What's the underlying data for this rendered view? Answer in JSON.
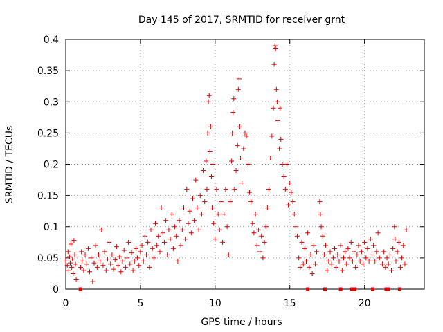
{
  "chart_data": {
    "type": "scatter",
    "title": "Day 145 of 2017, SRMTID for receiver grnt",
    "xlabel": "GPS time / hours",
    "ylabel": "SRMTID / TECUs",
    "xlim": [
      0,
      24
    ],
    "ylim": [
      0,
      0.4
    ],
    "xticks": [
      "0",
      "5",
      "10",
      "15",
      "20"
    ],
    "yticks": [
      "0",
      "0.05",
      "0.1",
      "0.15",
      "0.2",
      "0.25",
      "0.3",
      "0.35",
      "0.4"
    ],
    "grid": true,
    "marker": "+",
    "color": "#e00000",
    "series": [
      {
        "name": "SRMTID",
        "points": [
          [
            0.0,
            0.045
          ],
          [
            0.1,
            0.038
          ],
          [
            0.15,
            0.06
          ],
          [
            0.2,
            0.03
          ],
          [
            0.25,
            0.052
          ],
          [
            0.3,
            0.042
          ],
          [
            0.35,
            0.072
          ],
          [
            0.4,
            0.035
          ],
          [
            0.45,
            0.048
          ],
          [
            0.5,
            0.025
          ],
          [
            0.55,
            0.078
          ],
          [
            0.6,
            0.055
          ],
          [
            0.65,
            0.04
          ],
          [
            0.7,
            0.015
          ],
          [
            1.0,
            0.035
          ],
          [
            1.05,
            0.06
          ],
          [
            1.1,
            0.045
          ],
          [
            1.2,
            0.03
          ],
          [
            1.3,
            0.055
          ],
          [
            1.4,
            0.04
          ],
          [
            1.5,
            0.065
          ],
          [
            1.6,
            0.028
          ],
          [
            1.7,
            0.05
          ],
          [
            1.8,
            0.012
          ],
          [
            1.9,
            0.042
          ],
          [
            2.0,
            0.07
          ],
          [
            2.1,
            0.035
          ],
          [
            2.2,
            0.055
          ],
          [
            2.3,
            0.045
          ],
          [
            2.4,
            0.095
          ],
          [
            2.5,
            0.038
          ],
          [
            2.6,
            0.06
          ],
          [
            2.7,
            0.03
          ],
          [
            2.8,
            0.048
          ],
          [
            2.9,
            0.075
          ],
          [
            3.0,
            0.04
          ],
          [
            3.1,
            0.055
          ],
          [
            3.2,
            0.032
          ],
          [
            3.3,
            0.047
          ],
          [
            3.4,
            0.068
          ],
          [
            3.5,
            0.038
          ],
          [
            3.6,
            0.052
          ],
          [
            3.7,
            0.028
          ],
          [
            3.8,
            0.045
          ],
          [
            3.9,
            0.062
          ],
          [
            4.0,
            0.035
          ],
          [
            4.1,
            0.05
          ],
          [
            4.2,
            0.075
          ],
          [
            4.3,
            0.04
          ],
          [
            4.4,
            0.058
          ],
          [
            4.5,
            0.03
          ],
          [
            4.6,
            0.045
          ],
          [
            4.7,
            0.065
          ],
          [
            4.8,
            0.05
          ],
          [
            4.9,
            0.038
          ],
          [
            5.0,
            0.06
          ],
          [
            5.1,
            0.07
          ],
          [
            5.2,
            0.045
          ],
          [
            5.3,
            0.085
          ],
          [
            5.4,
            0.055
          ],
          [
            5.5,
            0.075
          ],
          [
            5.6,
            0.035
          ],
          [
            5.7,
            0.095
          ],
          [
            5.8,
            0.065
          ],
          [
            5.9,
            0.05
          ],
          [
            6.0,
            0.105
          ],
          [
            6.1,
            0.07
          ],
          [
            6.2,
            0.085
          ],
          [
            6.3,
            0.06
          ],
          [
            6.4,
            0.13
          ],
          [
            6.5,
            0.09
          ],
          [
            6.6,
            0.075
          ],
          [
            6.7,
            0.11
          ],
          [
            6.8,
            0.055
          ],
          [
            6.9,
            0.095
          ],
          [
            7.0,
            0.08
          ],
          [
            7.1,
            0.12
          ],
          [
            7.2,
            0.065
          ],
          [
            7.3,
            0.1
          ],
          [
            7.4,
            0.085
          ],
          [
            7.5,
            0.045
          ],
          [
            7.6,
            0.11
          ],
          [
            7.7,
            0.07
          ],
          [
            7.8,
            0.095
          ],
          [
            7.9,
            0.13
          ],
          [
            8.0,
            0.08
          ],
          [
            8.1,
            0.16
          ],
          [
            8.2,
            0.105
          ],
          [
            8.3,
            0.125
          ],
          [
            8.4,
            0.09
          ],
          [
            8.5,
            0.145
          ],
          [
            8.6,
            0.11
          ],
          [
            8.7,
            0.175
          ],
          [
            8.8,
            0.13
          ],
          [
            8.9,
            0.095
          ],
          [
            9.0,
            0.15
          ],
          [
            9.1,
            0.12
          ],
          [
            9.2,
            0.19
          ],
          [
            9.3,
            0.14
          ],
          [
            9.4,
            0.205
          ],
          [
            9.45,
            0.16
          ],
          [
            9.5,
            0.25
          ],
          [
            9.55,
            0.3
          ],
          [
            9.6,
            0.31
          ],
          [
            9.65,
            0.22
          ],
          [
            9.7,
            0.26
          ],
          [
            9.75,
            0.18
          ],
          [
            9.8,
            0.13
          ],
          [
            9.85,
            0.2
          ],
          [
            9.9,
            0.105
          ],
          [
            10.0,
            0.08
          ],
          [
            10.1,
            0.16
          ],
          [
            10.2,
            0.12
          ],
          [
            10.3,
            0.095
          ],
          [
            10.4,
            0.14
          ],
          [
            10.5,
            0.075
          ],
          [
            10.6,
            0.12
          ],
          [
            10.7,
            0.16
          ],
          [
            10.8,
            0.1
          ],
          [
            10.9,
            0.055
          ],
          [
            11.0,
            0.14
          ],
          [
            11.1,
            0.205
          ],
          [
            11.15,
            0.25
          ],
          [
            11.2,
            0.283
          ],
          [
            11.25,
            0.305
          ],
          [
            11.3,
            0.16
          ],
          [
            11.4,
            0.19
          ],
          [
            11.5,
            0.23
          ],
          [
            11.55,
            0.32
          ],
          [
            11.6,
            0.337
          ],
          [
            11.65,
            0.26
          ],
          [
            11.7,
            0.21
          ],
          [
            11.8,
            0.17
          ],
          [
            11.9,
            0.225
          ],
          [
            12.0,
            0.25
          ],
          [
            12.1,
            0.245
          ],
          [
            12.2,
            0.2
          ],
          [
            12.3,
            0.155
          ],
          [
            12.4,
            0.14
          ],
          [
            12.5,
            0.105
          ],
          [
            12.6,
            0.09
          ],
          [
            12.7,
            0.12
          ],
          [
            12.8,
            0.07
          ],
          [
            12.9,
            0.095
          ],
          [
            13.0,
            0.06
          ],
          [
            13.1,
            0.085
          ],
          [
            13.2,
            0.05
          ],
          [
            13.3,
            0.075
          ],
          [
            13.4,
            0.1
          ],
          [
            13.5,
            0.13
          ],
          [
            13.6,
            0.16
          ],
          [
            13.7,
            0.21
          ],
          [
            13.8,
            0.245
          ],
          [
            13.9,
            0.29
          ],
          [
            13.95,
            0.36
          ],
          [
            14.0,
            0.39
          ],
          [
            14.05,
            0.385
          ],
          [
            14.1,
            0.32
          ],
          [
            14.15,
            0.3
          ],
          [
            14.2,
            0.27
          ],
          [
            14.3,
            0.225
          ],
          [
            14.35,
            0.29
          ],
          [
            14.4,
            0.24
          ],
          [
            14.5,
            0.2
          ],
          [
            14.6,
            0.18
          ],
          [
            14.7,
            0.16
          ],
          [
            14.8,
            0.2
          ],
          [
            14.9,
            0.135
          ],
          [
            15.0,
            0.17
          ],
          [
            15.1,
            0.155
          ],
          [
            15.2,
            0.14
          ],
          [
            15.3,
            0.12
          ],
          [
            15.4,
            0.1
          ],
          [
            15.5,
            0.085
          ],
          [
            15.6,
            0.05
          ],
          [
            15.7,
            0.035
          ],
          [
            15.8,
            0.075
          ],
          [
            15.9,
            0.04
          ],
          [
            16.0,
            0.065
          ],
          [
            16.1,
            0.045
          ],
          [
            16.2,
            0.09
          ],
          [
            16.3,
            0.035
          ],
          [
            16.4,
            0.055
          ],
          [
            16.5,
            0.025
          ],
          [
            16.6,
            0.07
          ],
          [
            16.7,
            0.04
          ],
          [
            16.8,
            0.06
          ],
          [
            17.0,
            0.14
          ],
          [
            17.05,
            0.12
          ],
          [
            17.1,
            0.1
          ],
          [
            17.2,
            0.085
          ],
          [
            17.3,
            0.055
          ],
          [
            17.4,
            0.07
          ],
          [
            17.5,
            0.03
          ],
          [
            17.6,
            0.045
          ],
          [
            17.7,
            0.06
          ],
          [
            17.8,
            0.04
          ],
          [
            17.9,
            0.05
          ],
          [
            18.0,
            0.065
          ],
          [
            18.1,
            0.035
          ],
          [
            18.2,
            0.055
          ],
          [
            18.3,
            0.045
          ],
          [
            18.4,
            0.07
          ],
          [
            18.5,
            0.03
          ],
          [
            18.6,
            0.05
          ],
          [
            18.7,
            0.06
          ],
          [
            18.8,
            0.04
          ],
          [
            18.9,
            0.065
          ],
          [
            19.0,
            0.05
          ],
          [
            19.1,
            0.075
          ],
          [
            19.2,
            0.045
          ],
          [
            19.3,
            0.06
          ],
          [
            19.4,
            0.035
          ],
          [
            19.5,
            0.055
          ],
          [
            19.6,
            0.07
          ],
          [
            19.7,
            0.045
          ],
          [
            19.8,
            0.06
          ],
          [
            19.9,
            0.04
          ],
          [
            20.0,
            0.075
          ],
          [
            20.1,
            0.05
          ],
          [
            20.2,
            0.065
          ],
          [
            20.3,
            0.045
          ],
          [
            20.4,
            0.08
          ],
          [
            20.5,
            0.055
          ],
          [
            20.6,
            0.07
          ],
          [
            20.7,
            0.045
          ],
          [
            20.8,
            0.06
          ],
          [
            20.9,
            0.09
          ],
          [
            21.0,
            0.05
          ],
          [
            21.2,
            0.04
          ],
          [
            21.3,
            0.06
          ],
          [
            21.4,
            0.035
          ],
          [
            21.5,
            0.05
          ],
          [
            21.6,
            0.04
          ],
          [
            21.7,
            0.055
          ],
          [
            21.8,
            0.03
          ],
          [
            21.9,
            0.065
          ],
          [
            22.0,
            0.1
          ],
          [
            22.05,
            0.08
          ],
          [
            22.1,
            0.045
          ],
          [
            22.2,
            0.06
          ],
          [
            22.3,
            0.075
          ],
          [
            22.4,
            0.035
          ],
          [
            22.5,
            0.05
          ],
          [
            22.6,
            0.07
          ],
          [
            22.7,
            0.04
          ],
          [
            22.8,
            0.095
          ]
        ]
      }
    ],
    "gaps": [
      0.98,
      16.2,
      17.35,
      18.4,
      19.15,
      19.35,
      20.55,
      21.45,
      21.6,
      22.35
    ]
  }
}
